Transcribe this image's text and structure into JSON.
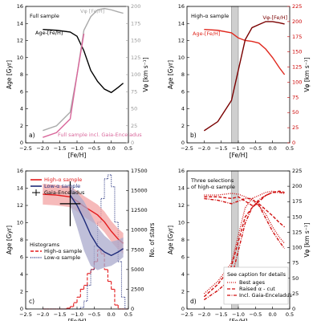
{
  "chart_data": [
    {
      "type": "line",
      "panel_label": "a)",
      "title": "Full sample",
      "xlabel": "[Fe/H]",
      "ylabel": "Age [Gyr]",
      "y2label": "Vφ [km s⁻¹]",
      "y2color": "#999999",
      "xlim": [
        -2.5,
        0.5
      ],
      "xticks": [
        {
          "value": -2.5,
          "label": "−2.5"
        },
        {
          "value": -2.0,
          "label": "−2.0"
        },
        {
          "value": -1.5,
          "label": "−1.5"
        },
        {
          "value": -1.0,
          "label": "−1.0"
        },
        {
          "value": -0.5,
          "label": "−0.5"
        },
        {
          "value": 0,
          "label": "0.0"
        },
        0.5
      ],
      "ylim": [
        0,
        16
      ],
      "yticks": [
        0,
        2,
        4,
        6,
        8,
        10,
        12,
        14,
        16
      ],
      "y2lim": [
        0,
        200
      ],
      "y2ticks": [
        0,
        25,
        50,
        75,
        100,
        125,
        150,
        175,
        200
      ],
      "series": [
        {
          "name": "Age-[Fe/H]",
          "color": "#000000",
          "style": "solid",
          "x": [
            -2.0,
            -1.6,
            -1.2,
            -1.0,
            -0.8,
            -0.6,
            -0.4,
            -0.2,
            0.0,
            0.2,
            0.35
          ],
          "values": [
            13.3,
            13.2,
            13.0,
            12.5,
            10.8,
            8.5,
            7.2,
            6.3,
            5.9,
            6.5,
            7.0
          ]
        },
        {
          "name": "Vφ [Fe/H]",
          "color": "#aaaaaa",
          "style": "solid",
          "axis": "y2",
          "x": [
            -2.0,
            -1.6,
            -1.2,
            -1.0,
            -0.8,
            -0.6,
            -0.4,
            -0.2,
            0.0,
            0.2,
            0.35
          ],
          "values": [
            18,
            25,
            45,
            100,
            165,
            185,
            195,
            197,
            195,
            192,
            190
          ]
        },
        {
          "name": "Full sample incl. Gaia-Enceladus",
          "color": "#d9679b",
          "style": "solid",
          "axis": "y2",
          "x": [
            -2.0,
            -1.6,
            -1.2,
            -1.0,
            -0.8,
            -0.6,
            -0.4,
            -0.2,
            0.0,
            0.2,
            0.35
          ],
          "values": [
            8,
            15,
            35,
            100,
            160,
            null,
            null,
            null,
            null,
            null,
            null
          ]
        }
      ]
    },
    {
      "type": "line",
      "panel_label": "b)",
      "title": "High-α sample",
      "xlabel": "[Fe/H]",
      "ylabel": "Age [Gyr]",
      "y2label": "Vφ [km s⁻¹]",
      "y2color": "#cc0000",
      "xlim": [
        -2.5,
        0.5
      ],
      "xticks": [
        {
          "value": -2.5,
          "label": "−2.5"
        },
        {
          "value": -2.0,
          "label": "−2.0"
        },
        {
          "value": -1.5,
          "label": "−1.5"
        },
        {
          "value": -1.0,
          "label": "−1.0"
        },
        {
          "value": -0.5,
          "label": "−0.5"
        },
        {
          "value": 0,
          "label": "0.0"
        },
        0.5
      ],
      "ylim": [
        0,
        16
      ],
      "yticks": [
        0,
        2,
        4,
        6,
        8,
        10,
        12,
        14,
        16
      ],
      "y2lim": [
        0,
        225
      ],
      "y2ticks": [
        0,
        25,
        50,
        75,
        100,
        125,
        150,
        175,
        200,
        225
      ],
      "shade": [
        -1.2,
        -1.0
      ],
      "series": [
        {
          "name": "Age-[Fe/H]",
          "color": "#e0281e",
          "style": "solid",
          "x": [
            -2.0,
            -1.6,
            -1.2,
            -1.0,
            -0.8,
            -0.6,
            -0.4,
            -0.2,
            0.0,
            0.2,
            0.35
          ],
          "values": [
            13.3,
            13.2,
            12.9,
            12.3,
            12.0,
            11.9,
            11.7,
            11.0,
            10.0,
            8.8,
            8.0
          ]
        },
        {
          "name": "Vφ-[Fe/H]",
          "color": "#7a0000",
          "style": "solid",
          "axis": "y2",
          "x": [
            -2.0,
            -1.6,
            -1.2,
            -1.0,
            -0.8,
            -0.6,
            -0.4,
            -0.2,
            0.0,
            0.2,
            0.35
          ],
          "values": [
            20,
            35,
            70,
            120,
            170,
            190,
            195,
            200,
            200,
            198,
            196
          ]
        }
      ]
    },
    {
      "type": "line",
      "panel_label": "c)",
      "xlabel": "[Fe/H]",
      "ylabel": "Age [Gyr]",
      "y2label": "No. of stars",
      "y2color": "#000000",
      "legend": true,
      "xlim": [
        -2.5,
        0.5
      ],
      "xticks": [
        {
          "value": -2.5,
          "label": "−2.5"
        },
        {
          "value": -2.0,
          "label": "−2.0"
        },
        {
          "value": -1.5,
          "label": "−1.5"
        },
        {
          "value": -1.0,
          "label": "−1.0"
        },
        {
          "value": -0.5,
          "label": "−0.5"
        },
        {
          "value": 0,
          "label": "0.0"
        },
        0.5
      ],
      "ylim": [
        0,
        16
      ],
      "yticks": [
        0,
        2,
        4,
        6,
        8,
        10,
        12,
        14,
        16
      ],
      "y2lim": [
        0,
        17500
      ],
      "y2ticks": [
        0,
        2500,
        5000,
        7500,
        10000,
        12500,
        15000,
        17500
      ],
      "series": [
        {
          "name": "High-α sample",
          "color": "#e31a1c",
          "band_color": "#f3a3a3",
          "style": "solid",
          "x": [
            -2.0,
            -1.6,
            -1.2,
            -1.0,
            -0.8,
            -0.6,
            -0.4,
            -0.2,
            0.0,
            0.2,
            0.35
          ],
          "values": [
            13.3,
            13.2,
            13.0,
            12.5,
            11.9,
            11.4,
            10.9,
            10.1,
            9.0,
            8.1,
            7.6
          ],
          "upper": [
            14.5,
            14.4,
            14.2,
            13.7,
            13.1,
            12.6,
            12.1,
            11.3,
            10.2,
            9.3,
            8.8
          ],
          "lower": [
            12.1,
            12.0,
            11.8,
            11.3,
            10.7,
            10.2,
            9.7,
            8.9,
            7.8,
            6.9,
            6.4
          ]
        },
        {
          "name": "Low-α sample",
          "color": "#1f2b7a",
          "band_color": "#a9a9cc",
          "style": "solid",
          "x": [
            -1.2,
            -1.0,
            -0.8,
            -0.6,
            -0.4,
            -0.2,
            0.0,
            0.2,
            0.35
          ],
          "values": [
            13.2,
            12.0,
            10.4,
            8.6,
            7.3,
            6.6,
            6.2,
            6.6,
            7.0
          ],
          "upper": [
            14.2,
            13.5,
            12.5,
            11.0,
            9.5,
            8.5,
            7.8,
            8.0,
            8.3
          ],
          "lower": [
            12.0,
            9.5,
            6.8,
            5.0,
            4.5,
            4.8,
            5.0,
            5.5,
            6.0
          ]
        },
        {
          "name": "Gaia-Enceladus",
          "color": "#000000",
          "x": -1.2,
          "value": 12.2,
          "xerr": 0.3,
          "yerr": 2.6
        }
      ],
      "histogram_title": "Histograms",
      "bins": [
        -2.0,
        -1.9,
        -1.8,
        -1.7,
        -1.6,
        -1.5,
        -1.4,
        -1.3,
        -1.2,
        -1.1,
        -1.0,
        -0.9,
        -0.8,
        -0.7,
        -0.6,
        -0.5,
        -0.4,
        -0.3,
        -0.2,
        -0.1,
        0.0,
        0.1,
        0.2,
        0.3,
        0.4,
        0.5
      ],
      "histograms": [
        {
          "name": "High-α sample",
          "color": "#e31a1c",
          "style": "dashed",
          "counts": [
            0,
            0,
            0,
            0,
            0,
            0,
            0,
            100,
            300,
            800,
            1500,
            2500,
            3000,
            4500,
            5000,
            6000,
            7500,
            7000,
            5000,
            3500,
            2500,
            500,
            0,
            0,
            0
          ]
        },
        {
          "name": "Low-α sample",
          "color": "#1f2b7a",
          "style": "dotted",
          "counts": [
            0,
            0,
            0,
            0,
            0,
            0,
            0,
            0,
            0,
            0,
            0,
            200,
            1000,
            3000,
            5000,
            8000,
            11000,
            14000,
            16500,
            17000,
            15500,
            11000,
            6000,
            1500,
            0
          ]
        }
      ]
    },
    {
      "type": "line",
      "panel_label": "d)",
      "title_lines": [
        "Three selections",
        "of high-α sample"
      ],
      "xlabel": "[Fe/H]",
      "ylabel": "Age [Gyr]",
      "y2label": "Vφ [km s⁻¹]",
      "y2color": "#000000",
      "legend": true,
      "legend_title": "See caption for details",
      "xlim": [
        -2.5,
        0.5
      ],
      "xticks": [
        {
          "value": -2.5,
          "label": "−2.5"
        },
        {
          "value": -2.0,
          "label": "−2.0"
        },
        {
          "value": -1.5,
          "label": "−1.5"
        },
        {
          "value": -1.0,
          "label": "−1.0"
        },
        {
          "value": -0.5,
          "label": "−0.5"
        },
        {
          "value": 0,
          "label": "0.0"
        },
        0.5
      ],
      "ylim": [
        0,
        16
      ],
      "yticks": [
        0,
        2,
        4,
        6,
        8,
        10,
        12,
        14,
        16
      ],
      "y2lim": [
        0,
        225
      ],
      "y2ticks": [
        0,
        25,
        50,
        75,
        100,
        125,
        150,
        175,
        200,
        225
      ],
      "shade": [
        -1.2,
        -1.0
      ],
      "series": [
        {
          "color": "#d01010",
          "style": "dotted",
          "x": [
            -2.0,
            -1.6,
            -1.2,
            -1.0,
            -0.8,
            -0.6,
            -0.4,
            -0.2,
            0.0,
            0.2,
            0.35
          ],
          "values": [
            13.2,
            13.2,
            13.4,
            13.3,
            13.0,
            12.6,
            12.0,
            11.0,
            9.5,
            8.3,
            7.6
          ]
        },
        {
          "color": "#d01010",
          "style": "dashed",
          "x": [
            -2.0,
            -1.6,
            -1.2,
            -1.0,
            -0.8,
            -0.6,
            -0.4,
            -0.2,
            0.0,
            0.2,
            0.35
          ],
          "values": [
            13.0,
            13.0,
            12.8,
            13.0,
            12.5,
            12.0,
            12.2,
            11.5,
            10.8,
            10.0,
            9.5
          ]
        },
        {
          "color": "#d01010",
          "style": "dashdot",
          "x": [
            -2.0,
            -1.6,
            -1.2,
            -1.0,
            -0.8,
            -0.6,
            -0.4,
            -0.2,
            0.0,
            0.2,
            0.35
          ],
          "values": [
            12.8,
            12.6,
            12.2,
            12.5,
            12.8,
            12.8,
            12.0,
            10.5,
            9.0,
            7.8,
            7.0
          ]
        },
        {
          "name": "Best ages",
          "color": "#d01010",
          "style": "dotted",
          "axis": "y2",
          "x": [
            -2.0,
            -1.6,
            -1.2,
            -1.0,
            -0.8,
            -0.6,
            -0.4,
            -0.2,
            0.0,
            0.2,
            0.35
          ],
          "values": [
            25,
            45,
            75,
            120,
            165,
            180,
            185,
            190,
            192,
            190,
            188
          ]
        },
        {
          "name": "Raised α - cut",
          "color": "#d01010",
          "style": "dashed",
          "axis": "y2",
          "x": [
            -2.0,
            -1.6,
            -1.2,
            -1.0,
            -0.8,
            -0.6,
            -0.4,
            -0.2,
            0.0,
            0.2,
            0.35
          ],
          "values": [
            20,
            40,
            70,
            110,
            150,
            165,
            175,
            185,
            190,
            192,
            190
          ]
        },
        {
          "name": "Incl. Gaia-Enceladus",
          "color": "#d01010",
          "style": "dashdot",
          "axis": "y2",
          "x": [
            -2.0,
            -1.6,
            -1.2,
            -1.0,
            -0.8,
            -0.6,
            -0.4,
            -0.2,
            0.0,
            0.2,
            0.35
          ],
          "values": [
            15,
            30,
            50,
            95,
            140,
            165,
            178,
            185,
            190,
            190,
            189
          ]
        }
      ]
    }
  ]
}
